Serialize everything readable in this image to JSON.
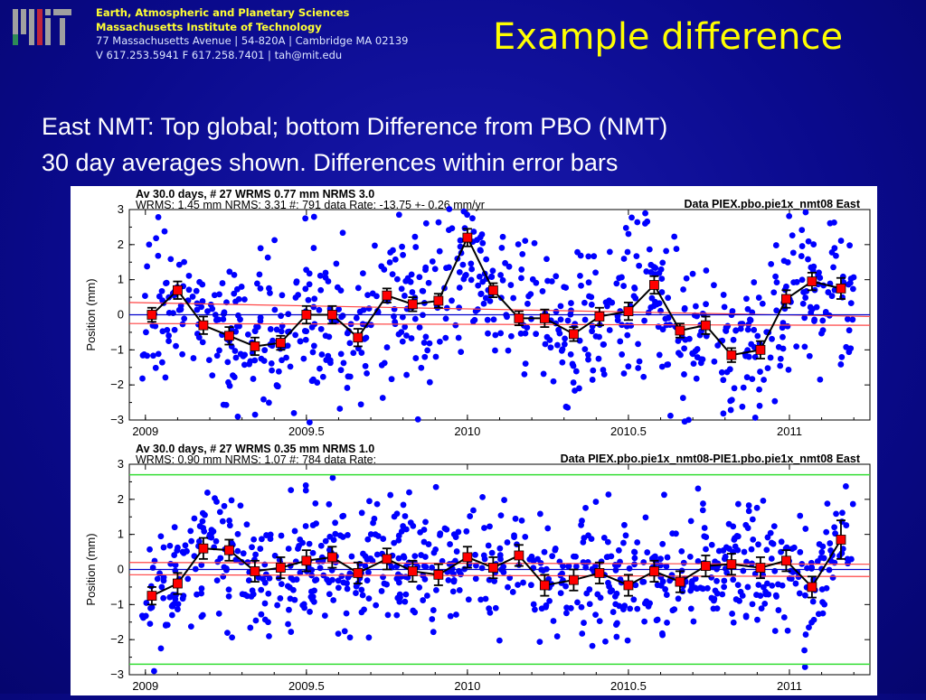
{
  "header": {
    "department": "Earth, Atmospheric and Planetary Sciences",
    "institute": "Massachusetts Institute of Technology",
    "address": "77 Massachusetts Avenue | 54-820A | Cambridge MA 02139",
    "contact": "V 617.253.5941 F 617.258.7401 | tah@mit.edu"
  },
  "slide": {
    "title": "Example difference",
    "line1": "East NMT: Top global; bottom Difference from PBO (NMT)",
    "line2": "30 day averages shown.  Differences within error bars"
  },
  "colors": {
    "background": "#0a0a8c",
    "title": "#ffff00",
    "points": "#0000ff",
    "averages": "#ff0000",
    "fit_line": "#ff4444",
    "zero_line": "#0000cc",
    "bounds": "#33dd33"
  },
  "chart_data": [
    {
      "type": "scatter",
      "info_line1": "Av   30.0 days, # 27  WRMS   0.77 mm NRMS   3.0",
      "info_line2": "WRMS:    1.45 mm NRMS:  3.31 #:   791 data   Rate:   -13.75 +-    0.26 mm/yr",
      "data_label": "Data PIEX.pbo.pie1x_nmt08 East",
      "ylabel": "Position (mm)",
      "xlim": [
        2008.95,
        2011.25
      ],
      "ylim": [
        -3,
        3
      ],
      "xticks": [
        2009,
        2009.5,
        2010,
        2010.5,
        2011
      ],
      "xtick_labels": [
        "2009",
        "2009.5",
        "2010",
        "2010.5",
        "2011"
      ],
      "yticks": [
        -3,
        -2,
        -1,
        0,
        1,
        2,
        3
      ],
      "averages": {
        "x": [
          2009.02,
          2009.1,
          2009.18,
          2009.26,
          2009.34,
          2009.42,
          2009.5,
          2009.58,
          2009.66,
          2009.75,
          2009.83,
          2009.91,
          2010.0,
          2010.08,
          2010.16,
          2010.24,
          2010.33,
          2010.41,
          2010.5,
          2010.58,
          2010.66,
          2010.74,
          2010.82,
          2010.91,
          2010.99,
          2011.07,
          2011.16
        ],
        "y": [
          0.0,
          0.7,
          -0.3,
          -0.6,
          -0.9,
          -0.8,
          0.0,
          0.0,
          -0.65,
          0.55,
          0.3,
          0.4,
          2.2,
          0.7,
          -0.1,
          -0.1,
          -0.55,
          -0.05,
          0.1,
          0.85,
          -0.45,
          -0.3,
          -1.15,
          -1.0,
          0.45,
          0.95,
          0.75
        ],
        "err": [
          0.2,
          0.25,
          0.25,
          0.25,
          0.25,
          0.2,
          0.25,
          0.25,
          0.25,
          0.2,
          0.2,
          0.2,
          0.25,
          0.2,
          0.2,
          0.25,
          0.2,
          0.25,
          0.25,
          0.25,
          0.2,
          0.25,
          0.2,
          0.25,
          0.25,
          0.25,
          0.3
        ]
      },
      "fit_lines": [
        {
          "y_start": 0.35,
          "y_end": -0.05
        },
        {
          "y_start": -0.25,
          "y_end": -0.3
        }
      ],
      "zero_line": {
        "y_start": 0.0,
        "y_end": 0.0
      },
      "scatter_seed": 7,
      "scatter_count": 791,
      "scatter_spread": 1.1
    },
    {
      "type": "scatter",
      "info_line1": "Av   30.0 days, # 27  WRMS   0.35 mm NRMS   1.0",
      "info_line2": "WRMS:    0.90 mm NRMS:  1.07 #:   784 data   Rate:",
      "data_label": "Data PIEX.pbo.pie1x_nmt08-PIE1.pbo.pie1x_nmt08 East",
      "ylabel": "Position (mm)",
      "xlim": [
        2008.95,
        2011.25
      ],
      "ylim": [
        -3,
        3
      ],
      "xticks": [
        2009,
        2009.5,
        2010,
        2010.5,
        2011
      ],
      "xtick_labels": [
        "2009",
        "2009.5",
        "2010",
        "2010.5",
        "2011"
      ],
      "yticks": [
        -3,
        -2,
        -1,
        0,
        1,
        2,
        3
      ],
      "averages": {
        "x": [
          2009.02,
          2009.1,
          2009.18,
          2009.26,
          2009.34,
          2009.42,
          2009.5,
          2009.58,
          2009.66,
          2009.75,
          2009.83,
          2009.91,
          2010.0,
          2010.08,
          2010.16,
          2010.24,
          2010.33,
          2010.41,
          2010.5,
          2010.58,
          2010.66,
          2010.74,
          2010.82,
          2010.91,
          2010.99,
          2011.07,
          2011.16
        ],
        "y": [
          -0.75,
          -0.4,
          0.6,
          0.55,
          -0.05,
          0.05,
          0.25,
          0.35,
          -0.1,
          0.3,
          -0.05,
          -0.15,
          0.35,
          0.05,
          0.4,
          -0.45,
          -0.3,
          -0.1,
          -0.45,
          -0.05,
          -0.35,
          0.1,
          0.15,
          0.05,
          0.25,
          -0.5,
          0.85
        ],
        "err": [
          0.25,
          0.3,
          0.3,
          0.3,
          0.3,
          0.3,
          0.3,
          0.3,
          0.3,
          0.3,
          0.3,
          0.3,
          0.3,
          0.3,
          0.3,
          0.3,
          0.3,
          0.3,
          0.3,
          0.3,
          0.3,
          0.3,
          0.3,
          0.3,
          0.3,
          0.3,
          0.55
        ]
      },
      "fit_lines": [
        {
          "y_start": 0.2,
          "y_end": 0.15
        },
        {
          "y_start": -0.15,
          "y_end": -0.2
        }
      ],
      "zero_line": {
        "y_start": 0.0,
        "y_end": 0.0
      },
      "bounds": [
        2.7,
        -2.7
      ],
      "scatter_seed": 19,
      "scatter_count": 784,
      "scatter_spread": 0.95
    }
  ]
}
